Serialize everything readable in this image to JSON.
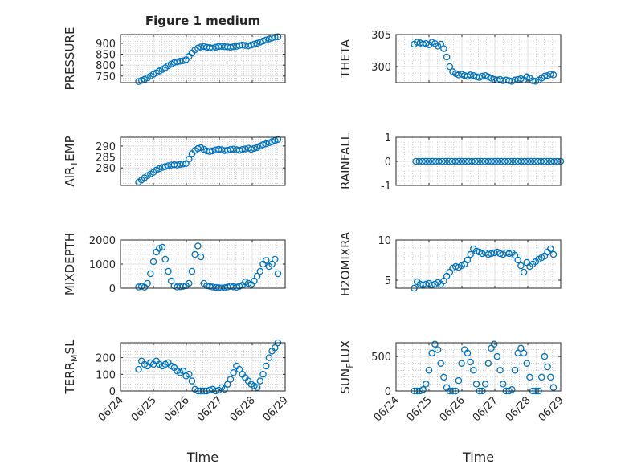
{
  "figure": {
    "title": "Figure 1 medium",
    "marker_color": "#0072BD",
    "xlabel": "Time",
    "xticks": [
      "06/24",
      "06/25",
      "06/26",
      "06/27",
      "06/28",
      "06/29"
    ]
  },
  "chart_data": [
    {
      "type": "scatter",
      "title": "Figure 1 medium",
      "ylabel": "PRESSURE",
      "ylabel_base": "PRESSURE",
      "ylabel_sub": "",
      "ylabel_rest": "",
      "xlabel": "",
      "xlim": [
        0,
        5
      ],
      "ylim": [
        720,
        940
      ],
      "yticks": [
        "750",
        "800",
        "850",
        "900"
      ],
      "ytick_values": [
        750,
        800,
        850,
        900
      ],
      "grid": true,
      "x": [
        0.55,
        0.64,
        0.73,
        0.82,
        0.91,
        1.0,
        1.09,
        1.18,
        1.27,
        1.36,
        1.45,
        1.54,
        1.63,
        1.72,
        1.81,
        1.9,
        1.99,
        2.08,
        2.17,
        2.26,
        2.35,
        2.44,
        2.53,
        2.62,
        2.71,
        2.8,
        2.89,
        2.98,
        3.07,
        3.16,
        3.25,
        3.34,
        3.43,
        3.52,
        3.61,
        3.7,
        3.79,
        3.88,
        3.97,
        4.06,
        4.15,
        4.24,
        4.33,
        4.42,
        4.51,
        4.6,
        4.69,
        4.78
      ],
      "y": [
        725,
        730,
        735,
        742,
        750,
        758,
        765,
        773,
        780,
        788,
        797,
        805,
        812,
        815,
        818,
        820,
        825,
        840,
        855,
        870,
        878,
        883,
        885,
        882,
        880,
        878,
        882,
        885,
        886,
        884,
        883,
        882,
        884,
        886,
        890,
        892,
        890,
        888,
        892,
        896,
        900,
        905,
        910,
        915,
        920,
        925,
        928,
        930
      ]
    },
    {
      "type": "scatter",
      "title": "",
      "ylabel": "THETA",
      "ylabel_base": "THETA",
      "ylabel_sub": "",
      "ylabel_rest": "",
      "xlabel": "",
      "xlim": [
        0,
        5
      ],
      "ylim": [
        297.5,
        305
      ],
      "yticks": [
        "300",
        "305"
      ],
      "ytick_values": [
        300,
        305
      ],
      "grid": true,
      "x": [
        0.55,
        0.64,
        0.73,
        0.82,
        0.91,
        1.0,
        1.09,
        1.18,
        1.27,
        1.36,
        1.45,
        1.54,
        1.63,
        1.72,
        1.81,
        1.9,
        1.99,
        2.08,
        2.17,
        2.26,
        2.35,
        2.44,
        2.53,
        2.62,
        2.71,
        2.8,
        2.89,
        2.98,
        3.07,
        3.16,
        3.25,
        3.34,
        3.43,
        3.52,
        3.61,
        3.7,
        3.79,
        3.88,
        3.97,
        4.06,
        4.15,
        4.24,
        4.33,
        4.42,
        4.51,
        4.6,
        4.69,
        4.78
      ],
      "y": [
        303.5,
        303.8,
        303.7,
        303.5,
        303.6,
        303.4,
        303.8,
        303.6,
        303.2,
        303.5,
        302.8,
        301.5,
        300.0,
        299.2,
        298.9,
        298.7,
        298.8,
        298.6,
        298.5,
        298.7,
        298.6,
        298.4,
        298.3,
        298.5,
        298.6,
        298.4,
        298.2,
        298.0,
        297.9,
        298.0,
        297.8,
        297.9,
        297.8,
        297.7,
        297.9,
        298.0,
        298.1,
        297.9,
        298.4,
        298.2,
        297.8,
        297.7,
        297.9,
        298.2,
        298.5,
        298.6,
        298.8,
        298.7
      ]
    },
    {
      "type": "scatter",
      "title": "",
      "ylabel": "AIR_TEMP",
      "ylabel_base": "AIR",
      "ylabel_sub": "T",
      "ylabel_rest": "EMP",
      "xlabel": "",
      "xlim": [
        0,
        5
      ],
      "ylim": [
        272,
        294
      ],
      "yticks": [
        "280",
        "285",
        "290"
      ],
      "ytick_values": [
        280,
        285,
        290
      ],
      "grid": true,
      "x": [
        0.55,
        0.64,
        0.73,
        0.82,
        0.91,
        1.0,
        1.09,
        1.18,
        1.27,
        1.36,
        1.45,
        1.54,
        1.63,
        1.72,
        1.81,
        1.9,
        1.99,
        2.08,
        2.17,
        2.26,
        2.35,
        2.44,
        2.53,
        2.62,
        2.71,
        2.8,
        2.89,
        2.98,
        3.07,
        3.16,
        3.25,
        3.34,
        3.43,
        3.52,
        3.61,
        3.7,
        3.79,
        3.88,
        3.97,
        4.06,
        4.15,
        4.24,
        4.33,
        4.42,
        4.51,
        4.6,
        4.69,
        4.78
      ],
      "y": [
        273.5,
        274.5,
        275.5,
        276.5,
        277.2,
        278.0,
        279.0,
        279.7,
        280.2,
        280.6,
        281.0,
        281.3,
        281.5,
        281.3,
        281.6,
        281.8,
        282.0,
        284.0,
        286.5,
        288.0,
        288.8,
        289.2,
        288.5,
        287.8,
        287.5,
        287.8,
        288.2,
        288.5,
        288.3,
        287.9,
        288.1,
        288.4,
        288.6,
        288.3,
        288.0,
        288.4,
        288.7,
        289.0,
        288.5,
        288.9,
        289.3,
        290.0,
        290.6,
        291.0,
        291.5,
        292.0,
        292.5,
        293.0
      ]
    },
    {
      "type": "scatter",
      "title": "",
      "ylabel": "RAINFALL",
      "ylabel_base": "RAINFALL",
      "ylabel_sub": "",
      "ylabel_rest": "",
      "xlabel": "",
      "xlim": [
        0,
        5
      ],
      "ylim": [
        -1,
        1
      ],
      "yticks": [
        "-1",
        "0",
        "1"
      ],
      "ytick_values": [
        -1,
        0,
        1
      ],
      "grid": true,
      "x": [
        0.6,
        0.7,
        0.8,
        0.9,
        1.0,
        1.1,
        1.2,
        1.3,
        1.4,
        1.5,
        1.6,
        1.7,
        1.8,
        1.9,
        2.0,
        2.1,
        2.2,
        2.3,
        2.4,
        2.5,
        2.6,
        2.7,
        2.8,
        2.9,
        3.0,
        3.1,
        3.2,
        3.3,
        3.4,
        3.5,
        3.6,
        3.7,
        3.8,
        3.9,
        4.0,
        4.1,
        4.2,
        4.3,
        4.4,
        4.5,
        4.6,
        4.7,
        4.8,
        4.9,
        5.0
      ],
      "y": [
        0,
        0,
        0,
        0,
        0,
        0,
        0,
        0,
        0,
        0,
        0,
        0,
        0,
        0,
        0,
        0,
        0,
        0,
        0,
        0,
        0,
        0,
        0,
        0,
        0,
        0,
        0,
        0,
        0,
        0,
        0,
        0,
        0,
        0,
        0,
        0,
        0,
        0,
        0,
        0,
        0,
        0,
        0,
        0,
        0
      ]
    },
    {
      "type": "scatter",
      "title": "",
      "ylabel": "MIXDEPTH",
      "ylabel_base": "MIXDEPTH",
      "ylabel_sub": "",
      "ylabel_rest": "",
      "xlabel": "",
      "xlim": [
        0,
        5
      ],
      "ylim": [
        0,
        2000
      ],
      "yticks": [
        "0",
        "1000",
        "2000"
      ],
      "ytick_values": [
        0,
        1000,
        2000
      ],
      "grid": true,
      "x": [
        0.55,
        0.64,
        0.73,
        0.82,
        0.91,
        1.0,
        1.09,
        1.18,
        1.27,
        1.36,
        1.45,
        1.54,
        1.63,
        1.72,
        1.81,
        1.9,
        1.99,
        2.08,
        2.17,
        2.26,
        2.35,
        2.44,
        2.53,
        2.62,
        2.71,
        2.8,
        2.89,
        2.98,
        3.07,
        3.16,
        3.25,
        3.34,
        3.43,
        3.52,
        3.61,
        3.7,
        3.79,
        3.88,
        3.97,
        4.06,
        4.15,
        4.24,
        4.33,
        4.42,
        4.51,
        4.6,
        4.69,
        4.78
      ],
      "y": [
        50,
        80,
        40,
        200,
        600,
        1100,
        1500,
        1650,
        1700,
        1200,
        700,
        300,
        100,
        50,
        60,
        80,
        100,
        200,
        700,
        1400,
        1750,
        1300,
        200,
        100,
        80,
        50,
        30,
        20,
        10,
        20,
        50,
        80,
        60,
        40,
        80,
        120,
        260,
        200,
        150,
        300,
        500,
        700,
        1000,
        1150,
        900,
        1000,
        1200,
        600
      ]
    },
    {
      "type": "scatter",
      "title": "",
      "ylabel": "H2OMIXRA",
      "ylabel_base": "H2OMIXRA",
      "ylabel_sub": "",
      "ylabel_rest": "",
      "xlabel": "",
      "xlim": [
        0,
        5
      ],
      "ylim": [
        4,
        10
      ],
      "yticks": [
        "5",
        "10"
      ],
      "ytick_values": [
        5,
        10
      ],
      "grid": true,
      "x": [
        0.55,
        0.64,
        0.73,
        0.82,
        0.91,
        1.0,
        1.09,
        1.18,
        1.27,
        1.36,
        1.45,
        1.54,
        1.63,
        1.72,
        1.81,
        1.9,
        1.99,
        2.08,
        2.17,
        2.26,
        2.35,
        2.44,
        2.53,
        2.62,
        2.71,
        2.8,
        2.89,
        2.98,
        3.07,
        3.16,
        3.25,
        3.34,
        3.43,
        3.52,
        3.61,
        3.7,
        3.79,
        3.88,
        3.97,
        4.06,
        4.15,
        4.24,
        4.33,
        4.42,
        4.51,
        4.6,
        4.69,
        4.78
      ],
      "y": [
        4.0,
        4.8,
        4.5,
        4.4,
        4.5,
        4.6,
        4.4,
        4.5,
        4.7,
        4.5,
        4.9,
        5.5,
        6.0,
        6.5,
        6.7,
        6.6,
        6.8,
        7.0,
        7.5,
        8.2,
        8.9,
        8.6,
        8.5,
        8.3,
        8.4,
        8.2,
        8.3,
        8.4,
        8.5,
        8.3,
        8.2,
        8.4,
        8.3,
        8.4,
        8.1,
        7.5,
        6.8,
        6.0,
        7.2,
        6.7,
        7.0,
        7.3,
        7.6,
        7.8,
        8.0,
        8.5,
        8.9,
        8.2
      ]
    },
    {
      "type": "scatter",
      "title": "",
      "ylabel": "TERR_MSL",
      "ylabel_base": "TERR",
      "ylabel_sub": "M",
      "ylabel_rest": "SL",
      "xlabel": "Time",
      "xlim": [
        0,
        5
      ],
      "ylim": [
        0,
        290
      ],
      "yticks": [
        "0",
        "100",
        "200"
      ],
      "ytick_values": [
        0,
        100,
        200
      ],
      "grid": true,
      "x": [
        0.55,
        0.64,
        0.73,
        0.82,
        0.91,
        1.0,
        1.09,
        1.18,
        1.27,
        1.36,
        1.45,
        1.54,
        1.63,
        1.72,
        1.81,
        1.9,
        1.99,
        2.08,
        2.17,
        2.26,
        2.35,
        2.44,
        2.53,
        2.62,
        2.71,
        2.8,
        2.89,
        2.98,
        3.07,
        3.16,
        3.25,
        3.34,
        3.43,
        3.52,
        3.61,
        3.7,
        3.79,
        3.88,
        3.97,
        4.06,
        4.15,
        4.24,
        4.33,
        4.42,
        4.51,
        4.6,
        4.69,
        4.78
      ],
      "y": [
        130,
        180,
        160,
        150,
        170,
        160,
        180,
        160,
        150,
        160,
        170,
        150,
        140,
        120,
        110,
        120,
        90,
        100,
        60,
        10,
        0,
        0,
        0,
        0,
        5,
        10,
        0,
        5,
        20,
        10,
        40,
        70,
        110,
        150,
        130,
        100,
        80,
        60,
        40,
        30,
        20,
        60,
        100,
        150,
        200,
        240,
        260,
        290
      ]
    },
    {
      "type": "scatter",
      "title": "",
      "ylabel": "SUN_FLUX",
      "ylabel_base": "SUN",
      "ylabel_sub": "F",
      "ylabel_rest": "LUX",
      "xlabel": "Time",
      "xlim": [
        0,
        5
      ],
      "ylim": [
        0,
        700
      ],
      "yticks": [
        "0",
        "500"
      ],
      "ytick_values": [
        0,
        500
      ],
      "grid": true,
      "x": [
        0.55,
        0.64,
        0.73,
        0.82,
        0.91,
        1.0,
        1.09,
        1.18,
        1.27,
        1.36,
        1.45,
        1.54,
        1.63,
        1.72,
        1.81,
        1.9,
        1.99,
        2.08,
        2.17,
        2.26,
        2.35,
        2.44,
        2.53,
        2.62,
        2.71,
        2.8,
        2.89,
        2.98,
        3.07,
        3.16,
        3.25,
        3.34,
        3.43,
        3.52,
        3.61,
        3.7,
        3.79,
        3.88,
        3.97,
        4.06,
        4.15,
        4.24,
        4.33,
        4.42,
        4.51,
        4.6,
        4.69,
        4.78
      ],
      "y": [
        0,
        0,
        0,
        20,
        100,
        300,
        550,
        680,
        600,
        400,
        200,
        50,
        0,
        0,
        0,
        150,
        400,
        600,
        550,
        420,
        300,
        100,
        0,
        0,
        100,
        400,
        620,
        680,
        500,
        300,
        100,
        0,
        0,
        20,
        300,
        550,
        620,
        550,
        400,
        200,
        0,
        0,
        0,
        200,
        500,
        350,
        200,
        50
      ]
    }
  ]
}
